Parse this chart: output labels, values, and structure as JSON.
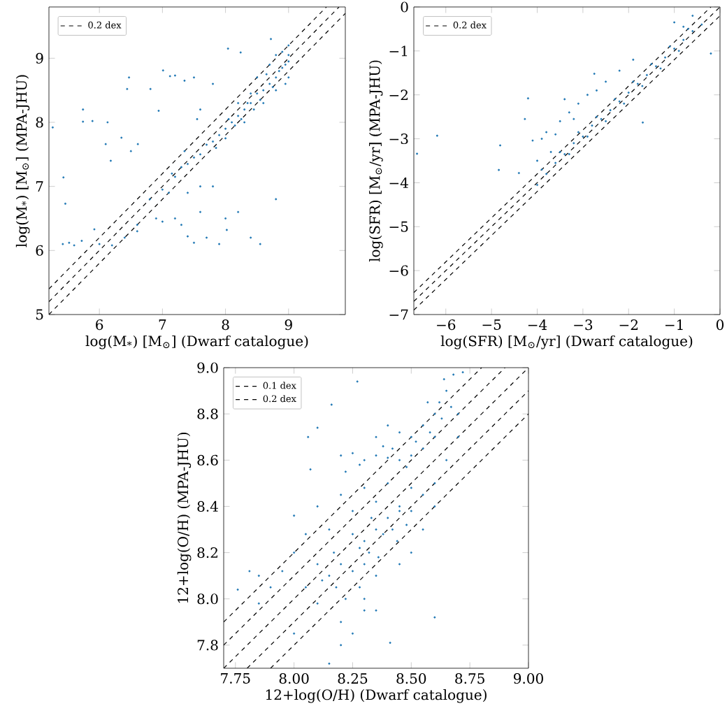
{
  "chart_data": [
    {
      "type": "scatter",
      "xlabel": "log(M$_{*}$) [M$_{⊙}$] (Dwarf catalogue)",
      "ylabel": "log(M$_{*}$) [M$_{⊙}$] (MPA-JHU)",
      "xlim": [
        5.2,
        9.9
      ],
      "ylim": [
        5,
        9.8
      ],
      "xticks": [
        6,
        7,
        8,
        9
      ],
      "yticks": [
        5,
        6,
        7,
        8,
        9
      ],
      "legend": "top left",
      "line_style": "dashed",
      "series": [
        {
          "color": "#1f77b4",
          "marker": "circle",
          "x": [
            5.26,
            5.43,
            5.46,
            5.74,
            5.74,
            5.89,
            6.13,
            6.1,
            6.18,
            6.44,
            6.47,
            6.35,
            6.61,
            6.5,
            5.42,
            5.52,
            5.6,
            5.72,
            5.92,
            6.0,
            6.2,
            6.4,
            6.6,
            7.01,
            7.12,
            7.2,
            7.35,
            6.81,
            6.94,
            7.55,
            7.6,
            7.8,
            7.5,
            8.04,
            8.24,
            8.72,
            7.2,
            7.3,
            7.4,
            7.5,
            7.7,
            7.9,
            8.0,
            8.02,
            8.2,
            8.4,
            8.55,
            8.8,
            7.6,
            6.9,
            7.1,
            7.3,
            7.4,
            7.6,
            7.8,
            6.8,
            6.6,
            7.0,
            7.15,
            7.35,
            7.5,
            7.7,
            7.8,
            8.0,
            8.1,
            8.2,
            8.3,
            8.4,
            8.5,
            8.6,
            8.7,
            8.8,
            8.9,
            9.0,
            9.0,
            9.0,
            8.8,
            8.6,
            8.4,
            8.2,
            8.5,
            8.7,
            8.9,
            8.3,
            8.0,
            7.9,
            7.6,
            7.4,
            7.2,
            7.0,
            8.95,
            8.8,
            8.45,
            8.55,
            8.65,
            8.75,
            8.85,
            8.95,
            9.0,
            8.15,
            8.25,
            8.35,
            8.05,
            7.85
          ],
          "values": [
            7.92,
            7.14,
            6.73,
            8.2,
            8.01,
            8.02,
            8.0,
            7.66,
            7.4,
            8.52,
            8.7,
            7.76,
            7.66,
            7.55,
            6.1,
            6.12,
            6.08,
            6.15,
            6.33,
            6.1,
            6.08,
            6.2,
            6.3,
            8.81,
            8.72,
            8.73,
            8.65,
            8.52,
            8.18,
            8.05,
            8.2,
            8.6,
            8.7,
            9.15,
            9.09,
            9.3,
            6.5,
            6.4,
            6.22,
            6.12,
            6.2,
            6.1,
            6.5,
            6.32,
            6.6,
            6.2,
            6.1,
            6.8,
            6.6,
            6.5,
            6.9,
            7.3,
            6.9,
            7.0,
            7.0,
            6.8,
            6.4,
            6.45,
            7.2,
            7.55,
            7.45,
            7.65,
            7.7,
            7.9,
            8.0,
            8.1,
            8.2,
            8.3,
            8.45,
            8.5,
            8.6,
            8.7,
            8.85,
            8.95,
            9.2,
            8.7,
            8.5,
            8.3,
            8.45,
            8.3,
            8.7,
            8.9,
            9.1,
            8.0,
            7.75,
            7.8,
            7.5,
            7.35,
            7.15,
            6.95,
            8.6,
            9.05,
            8.2,
            8.35,
            8.75,
            8.55,
            8.8,
            8.9,
            9.05,
            7.95,
            8.05,
            8.3,
            8.05,
            7.6
          ]
        },
        {
          "type": "line",
          "color": "#000000",
          "x": [
            5.2,
            9.8
          ],
          "values": [
            5.2,
            9.8
          ]
        },
        {
          "type": "line",
          "color": "#000000",
          "name": "0.2 dex",
          "x": [
            5.2,
            9.6
          ],
          "values": [
            5.4,
            9.8
          ]
        },
        {
          "type": "line",
          "color": "#000000",
          "x": [
            5.2,
            9.9
          ],
          "values": [
            5.0,
            9.7
          ]
        }
      ]
    },
    {
      "type": "scatter",
      "xlabel": "log(SFR) [M$_{⊙}$/yr] (Dwarf catalogue)",
      "ylabel": "log(SFR) [M$_{⊙}$/yr] (MPA-JHU)",
      "xlim": [
        -6.7,
        0
      ],
      "ylim": [
        -7,
        0
      ],
      "xticks": [
        {
          "value": -6,
          "label": "−6"
        },
        {
          "value": -5,
          "label": "−5"
        },
        {
          "value": -4,
          "label": "−4"
        },
        {
          "value": -3,
          "label": "−3"
        },
        {
          "value": -2,
          "label": "−2"
        },
        {
          "value": -1,
          "label": "−1"
        },
        0
      ],
      "yticks": [
        {
          "value": -7,
          "label": "−7"
        },
        {
          "value": -6,
          "label": "−6"
        },
        {
          "value": -5,
          "label": "−5"
        },
        {
          "value": -4,
          "label": "−4"
        },
        {
          "value": -3,
          "label": "−3"
        },
        {
          "value": -2,
          "label": "−2"
        },
        {
          "value": -1,
          "label": "−1"
        },
        0
      ],
      "legend": "top left",
      "line_style": "dashed",
      "series": [
        {
          "color": "#1f77b4",
          "marker": "circle",
          "x": [
            -6.63,
            -6.19,
            -4.81,
            -4.84,
            -4.2,
            -4.27,
            -4.1,
            -4.4,
            -2.75,
            -0.2,
            -1.69,
            -3.9,
            -3.8,
            -3.6,
            -3.5,
            -3.3,
            -3.1,
            -2.9,
            -2.7,
            -2.5,
            -3.7,
            -4.0,
            -3.4,
            -3.2,
            -2.2,
            -1.9,
            -1.0,
            -0.6,
            -0.8,
            -4.0,
            -3.8,
            -3.6,
            -3.4,
            -3.2,
            -3.0,
            -2.8,
            -2.6,
            -2.4,
            -2.2,
            -2.0,
            -1.8,
            -1.6,
            -1.4,
            -1.2,
            -1.0,
            -0.8,
            -0.6,
            -0.4,
            -3.9,
            -3.5,
            -3.1,
            -2.7,
            -2.3,
            -1.9,
            -1.5,
            -1.1,
            -0.7,
            -3.3,
            -2.9,
            -2.5,
            -2.1,
            -1.7,
            -1.3,
            -0.9
          ],
          "values": [
            -3.34,
            -2.93,
            -3.15,
            -3.71,
            -2.08,
            -2.55,
            -3.04,
            -3.78,
            -1.52,
            -1.06,
            -2.63,
            -3.0,
            -2.85,
            -2.9,
            -2.6,
            -2.4,
            -2.2,
            -2.0,
            -1.9,
            -1.7,
            -3.3,
            -3.5,
            -2.1,
            -2.55,
            -1.45,
            -1.2,
            -0.35,
            -0.2,
            -0.45,
            -4.05,
            -3.8,
            -3.55,
            -3.35,
            -3.1,
            -2.95,
            -2.7,
            -2.55,
            -2.35,
            -2.15,
            -1.95,
            -1.75,
            -1.55,
            -1.35,
            -1.15,
            -0.95,
            -0.75,
            -0.55,
            -0.4,
            -3.7,
            -3.3,
            -2.85,
            -2.5,
            -2.1,
            -1.7,
            -1.3,
            -0.9,
            -0.5,
            -3.35,
            -2.95,
            -2.6,
            -2.2,
            -1.8,
            -1.4,
            -1.0
          ]
        },
        {
          "type": "line",
          "color": "#000000",
          "x": [
            -6.7,
            0
          ],
          "values": [
            -6.7,
            0
          ]
        },
        {
          "type": "line",
          "color": "#000000",
          "name": "0.2 dex",
          "x": [
            -6.7,
            -0.2
          ],
          "values": [
            -6.5,
            0
          ]
        },
        {
          "type": "line",
          "color": "#000000",
          "x": [
            -6.7,
            0
          ],
          "values": [
            -6.9,
            -0.2
          ]
        }
      ]
    },
    {
      "type": "scatter",
      "xlabel": "12+log(O/H) (Dwarf catalogue)",
      "ylabel": "12+log(O/H) (MPA-JHU)",
      "xlim": [
        7.7,
        9.0
      ],
      "ylim": [
        7.7,
        9.0
      ],
      "xticks": [
        7.75,
        {
          "value": 8.0,
          "label": "8.00"
        },
        8.25,
        {
          "value": 8.5,
          "label": "8.50"
        },
        8.75,
        {
          "value": 9.0,
          "label": "9.00"
        }
      ],
      "yticks": [
        7.8,
        {
          "value": 8.0,
          "label": "8.0"
        },
        8.2,
        8.4,
        8.6,
        8.8,
        {
          "value": 9.0,
          "label": "9.0"
        }
      ],
      "legend": "top left",
      "line_style": "dashed",
      "series": [
        {
          "color": "#1f77b4",
          "marker": "circle",
          "x": [
            8.27,
            8.16,
            8.06,
            8.1,
            8.07,
            8.0,
            7.76,
            7.81,
            7.85,
            8.41,
            8.6,
            8.15,
            8.0,
            8.72,
            8.68,
            8.2,
            8.25,
            8.3,
            8.35,
            8.4,
            8.45,
            8.5,
            8.28,
            8.42,
            8.48,
            8.22,
            8.38,
            8.5,
            8.55,
            8.6,
            8.62,
            8.65,
            8.58,
            8.52,
            8.55,
            8.6,
            8.63,
            8.67,
            8.7,
            8.45,
            8.4,
            8.35,
            8.57,
            8.64,
            8.3,
            8.4,
            8.5,
            8.55,
            8.35,
            8.45,
            8.6,
            8.2,
            8.25,
            8.35,
            8.4,
            8.45,
            8.3,
            8.38,
            8.42,
            8.32,
            8.28,
            8.36,
            8.44,
            8.48,
            8.33,
            8.25,
            8.3,
            8.5,
            8.15,
            8.2,
            8.25,
            8.18,
            8.22,
            8.12,
            8.28,
            8.1,
            8.2,
            8.25,
            8.3,
            8.05,
            8.17,
            8.1,
            8.3,
            8.35,
            7.95,
            7.9,
            8.0,
            8.05,
            7.85,
            8.5,
            8.55,
            8.6,
            8.65,
            8.7,
            8.45,
            8.15,
            8.1,
            8.2,
            8.35
          ],
          "values": [
            8.94,
            8.84,
            8.7,
            8.74,
            8.56,
            8.36,
            8.04,
            8.12,
            7.98,
            7.81,
            7.92,
            7.72,
            7.85,
            8.98,
            8.97,
            8.62,
            8.63,
            8.6,
            8.62,
            8.61,
            8.6,
            8.62,
            8.58,
            8.65,
            8.57,
            8.55,
            8.66,
            8.7,
            8.75,
            8.8,
            8.85,
            8.9,
            8.72,
            8.68,
            8.65,
            8.7,
            8.78,
            8.83,
            8.8,
            8.72,
            8.75,
            8.7,
            8.85,
            8.95,
            8.48,
            8.5,
            8.48,
            8.45,
            8.42,
            8.4,
            8.5,
            8.45,
            8.38,
            8.3,
            8.35,
            8.38,
            8.25,
            8.28,
            8.3,
            8.2,
            8.22,
            8.18,
            8.25,
            8.32,
            8.35,
            8.28,
            8.15,
            8.38,
            8.1,
            8.15,
            8.12,
            8.05,
            8.0,
            8.08,
            8.05,
            7.98,
            7.9,
            7.85,
            8.0,
            8.05,
            8.2,
            8.15,
            7.95,
            8.1,
            8.12,
            8.05,
            8.2,
            8.28,
            8.1,
            8.2,
            8.3,
            8.4,
            8.6,
            8.7,
            8.15,
            8.3,
            8.4,
            7.8,
            7.95
          ]
        },
        {
          "type": "line",
          "color": "#000000",
          "x": [
            7.7,
            9.0
          ],
          "values": [
            7.7,
            9.0
          ]
        },
        {
          "type": "line",
          "color": "#000000",
          "name": "0.1 dex",
          "x": [
            7.7,
            8.9
          ],
          "values": [
            7.8,
            9.0
          ]
        },
        {
          "type": "line",
          "color": "#000000",
          "x": [
            7.8,
            9.0
          ],
          "values": [
            7.7,
            8.9
          ]
        },
        {
          "type": "line",
          "color": "#000000",
          "name": "0.2 dex",
          "x": [
            7.7,
            8.8
          ],
          "values": [
            7.9,
            9.0
          ]
        },
        {
          "type": "line",
          "color": "#000000",
          "x": [
            7.9,
            9.0
          ],
          "values": [
            7.7,
            8.8
          ]
        }
      ]
    }
  ]
}
